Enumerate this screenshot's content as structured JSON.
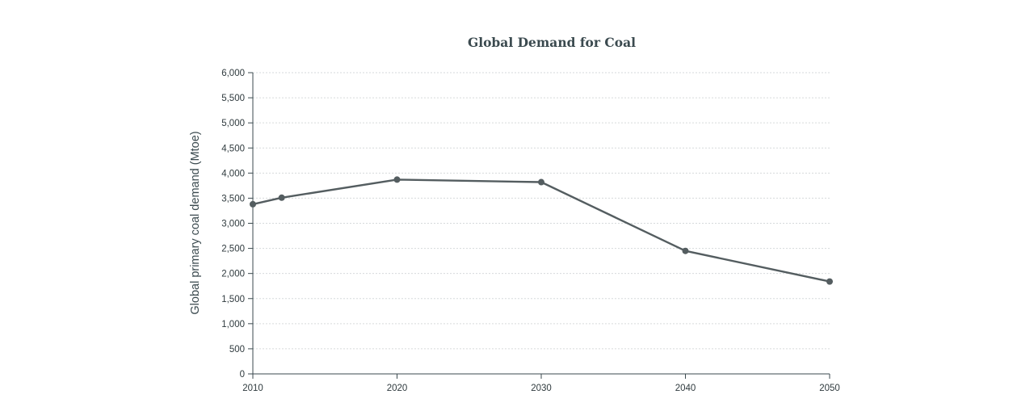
{
  "chart_data": {
    "type": "line",
    "title": "Global Demand for Coal",
    "xlabel": "",
    "ylabel": "Global primary coal demand (Mtoe)",
    "x": [
      2010,
      2012,
      2020,
      2030,
      2040,
      2050
    ],
    "series": [
      {
        "values": [
          3380,
          3510,
          3870,
          3820,
          2450,
          1840
        ]
      }
    ],
    "xlim": [
      2010,
      2050
    ],
    "ylim": [
      0,
      6000
    ],
    "x_ticks": [
      "2010",
      "2020",
      "2030",
      "2040",
      "2050"
    ],
    "y_ticks": [
      "0",
      "500",
      "1,000",
      "1,500",
      "2,000",
      "2,500",
      "3,000",
      "3,500",
      "4,000",
      "4,500",
      "5,000",
      "5,500",
      "6,000"
    ],
    "grid": true,
    "legend": false,
    "colors": {
      "line": "#545d60",
      "axis": "#3b4a4f",
      "grid": "#d6dadb",
      "title": "#3b4a4f"
    }
  }
}
